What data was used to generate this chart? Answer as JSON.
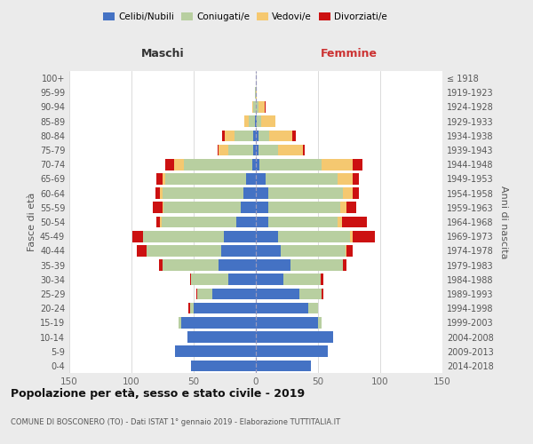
{
  "age_groups": [
    "0-4",
    "5-9",
    "10-14",
    "15-19",
    "20-24",
    "25-29",
    "30-34",
    "35-39",
    "40-44",
    "45-49",
    "50-54",
    "55-59",
    "60-64",
    "65-69",
    "70-74",
    "75-79",
    "80-84",
    "85-89",
    "90-94",
    "95-99",
    "100+"
  ],
  "birth_years": [
    "2014-2018",
    "2009-2013",
    "2004-2008",
    "1999-2003",
    "1994-1998",
    "1989-1993",
    "1984-1988",
    "1979-1983",
    "1974-1978",
    "1969-1973",
    "1964-1968",
    "1959-1963",
    "1954-1958",
    "1949-1953",
    "1944-1948",
    "1939-1943",
    "1934-1938",
    "1929-1933",
    "1924-1928",
    "1919-1923",
    "≤ 1918"
  ],
  "maschi_celibi": [
    52,
    65,
    55,
    60,
    50,
    35,
    22,
    30,
    28,
    26,
    16,
    12,
    10,
    8,
    3,
    2,
    2,
    1,
    0,
    0,
    0
  ],
  "maschi_coniugati": [
    0,
    0,
    0,
    2,
    3,
    12,
    30,
    45,
    60,
    65,
    60,
    62,
    65,
    65,
    55,
    20,
    15,
    5,
    2,
    1,
    0
  ],
  "maschi_vedovi": [
    0,
    0,
    0,
    0,
    0,
    0,
    0,
    0,
    0,
    0,
    1,
    1,
    2,
    2,
    8,
    8,
    8,
    3,
    1,
    0,
    0
  ],
  "maschi_divorziati": [
    0,
    0,
    0,
    0,
    1,
    1,
    1,
    3,
    8,
    8,
    3,
    8,
    4,
    5,
    7,
    1,
    2,
    0,
    0,
    0,
    0
  ],
  "femmine_nubili": [
    44,
    58,
    62,
    50,
    42,
    35,
    22,
    28,
    20,
    18,
    10,
    10,
    10,
    8,
    3,
    2,
    2,
    1,
    0,
    0,
    0
  ],
  "femmine_coniugate": [
    0,
    0,
    0,
    3,
    8,
    18,
    30,
    42,
    52,
    58,
    56,
    58,
    60,
    58,
    50,
    16,
    9,
    3,
    2,
    0,
    0
  ],
  "femmine_vedove": [
    0,
    0,
    0,
    0,
    0,
    0,
    0,
    0,
    1,
    2,
    3,
    5,
    8,
    12,
    25,
    20,
    18,
    12,
    5,
    1,
    0
  ],
  "femmine_divorziate": [
    0,
    0,
    0,
    0,
    0,
    1,
    2,
    3,
    5,
    18,
    20,
    8,
    5,
    5,
    8,
    1,
    3,
    0,
    1,
    0,
    0
  ],
  "color_celibi": "#4472c4",
  "color_coniugati": "#b8cfa0",
  "color_vedovi": "#f5c870",
  "color_divorziati": "#cc1111",
  "xlim": 150,
  "title": "Popolazione per età, sesso e stato civile - 2019",
  "subtitle": "COMUNE DI BOSCONERO (TO) - Dati ISTAT 1° gennaio 2019 - Elaborazione TUTTITALIA.IT",
  "bg_color": "#ebebeb",
  "plot_bg_color": "#ffffff"
}
